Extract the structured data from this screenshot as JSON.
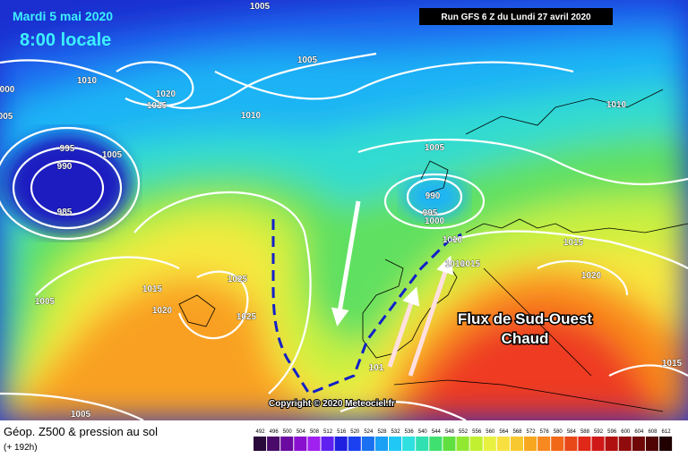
{
  "header": {
    "date": "Mardi 5 mai 2020",
    "time": "8:00 locale",
    "run": "Run GFS 6 Z du Lundi 27 avril 2020"
  },
  "annotation": {
    "line1": "Flux de Sud-Ouest",
    "line2": "Chaud"
  },
  "copyright": "Copyright © 2020 Meteociel.fr",
  "legend": {
    "title": "Géop. Z500 & pression au sol",
    "subtitle": "(+ 192h)",
    "scale": [
      492,
      496,
      500,
      504,
      508,
      512,
      516,
      520,
      524,
      528,
      532,
      536,
      540,
      544,
      548,
      552,
      556,
      560,
      564,
      568,
      572,
      576,
      580,
      584,
      588,
      592,
      596,
      600,
      604,
      608,
      612
    ]
  },
  "isobar_labels": [
    "1005",
    "1010",
    "1020",
    "1015",
    "000",
    "005",
    "1010",
    "1005",
    "995",
    "1005",
    "990",
    "985",
    "1005",
    "990",
    "995",
    "1000",
    "1010",
    "1015",
    "1015",
    "1020",
    "1015",
    "1025",
    "1020",
    "1025",
    "1005",
    "1010",
    "101",
    "1010",
    "1015",
    "1005"
  ]
}
